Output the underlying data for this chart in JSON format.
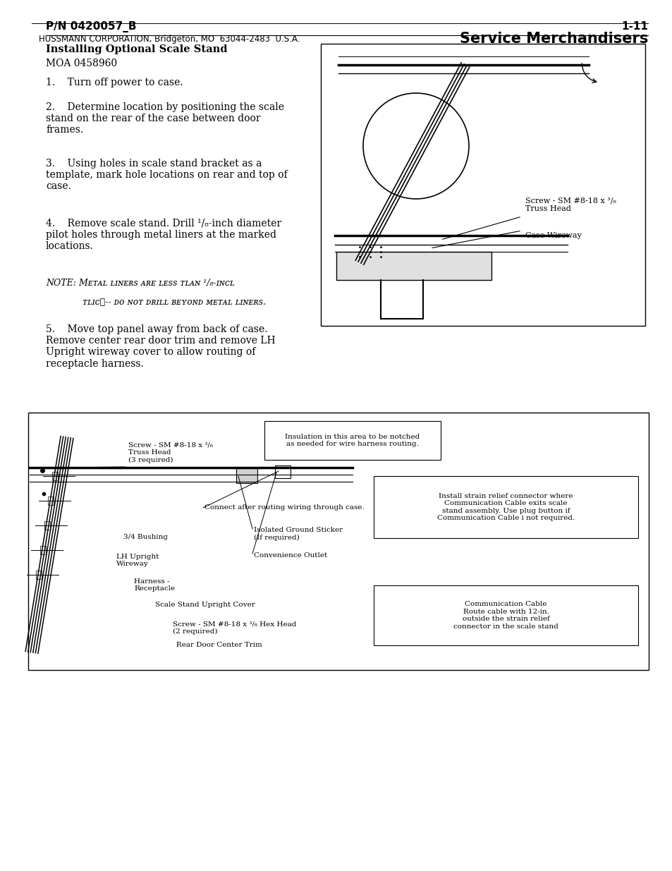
{
  "bg_color": "#ffffff",
  "page_width": 9.54,
  "page_height": 12.35,
  "header_left": "P/N 0420057_B",
  "header_right": "1-11",
  "section_title": "Installing Optional Scale Stand",
  "section_subtitle": "MOA 0458960",
  "step1": "1.    Turn off power to case.",
  "step2": "2.    Determine location by positioning the scale\nstand on the rear of the case between door\nframes.",
  "step3": "3.    Using holes in scale stand bracket as a\ntemplate, mark hole locations on rear and top of\ncase.",
  "step4": "4.    Remove scale stand. Drill ¹/₈-inch diameter\npilot holes through metal liners at the marked\nlocations.",
  "note_line1": "NOTE: Mᴇᴛᴀʟ ʟɪɴᴇʀs ᴀʀᴇ ʟᴇss ᴛʟᴀɴ ¹/₈-ɪɴᴄʟ",
  "note_line2": "ᴛʟɪᴄҸ-- ᴅᴏ ɴᴏᴛ ᴅʀɪʟʟ ʙᴇʏᴏɴᴅ ᴍᴇᴛᴀʟ ʟɪɴᴇʀs.",
  "step5": "5.    Move top panel away from back of case.\nRemove center rear door trim and remove LH\nUpright wireway cover to allow routing of\nreceptacle harness.",
  "footer_left": "HUSSMANN CORPORATION, Bridgeton, MO  63044-2483  U.S.A.",
  "footer_right": "Service Merchandisers",
  "top_label1": "Screw - SM #8-18 x ³/₈\nTruss Head",
  "top_label2": "Case Wireway",
  "bot_insulation": "Insulation in this area to be notched\nas needed for wire harness routing.",
  "bot_connect": "Connect after routing wiring through case.",
  "bot_isolated": "Isolated Ground Sticker\n(If required)",
  "bot_convenience": "Convenience Outlet",
  "bot_strain": "Install strain relief connector where\nCommunication Cable exits scale\nstand assembly. Use plug button if\nCommunication Cable i not required.",
  "bot_comm": "Communication Cable\nRoute cable with 12-in.\noutside the strain relief\nconnector in the scale stand",
  "bot_screw_label": "Screw - SM #8-18 x ³/₈\nTruss Head\n(3 required)",
  "bot_bushing": "3/4 Bushing",
  "bot_lhupright": "LH Upright\nWireway",
  "bot_harness": "Harness -\nReceptacle",
  "bot_scstand": "Scale Stand Upright Cover",
  "bot_screw2": "Screw - SM #8-18 x ³/₈ Hex Head\n(2 required)",
  "bot_reardoor": "Rear Door Center Trim"
}
